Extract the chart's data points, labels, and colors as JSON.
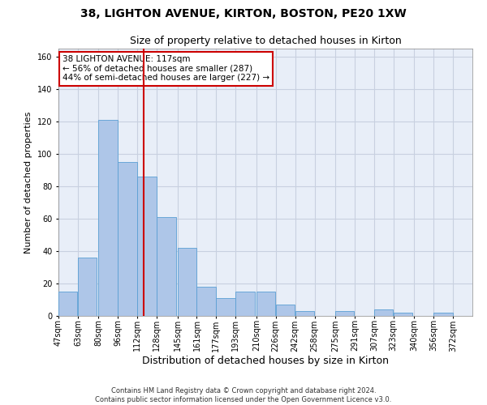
{
  "title1": "38, LIGHTON AVENUE, KIRTON, BOSTON, PE20 1XW",
  "title2": "Size of property relative to detached houses in Kirton",
  "xlabel": "Distribution of detached houses by size in Kirton",
  "ylabel": "Number of detached properties",
  "footer1": "Contains HM Land Registry data © Crown copyright and database right 2024.",
  "footer2": "Contains public sector information licensed under the Open Government Licence v3.0.",
  "annotation_title": "38 LIGHTON AVENUE: 117sqm",
  "annotation_line1": "← 56% of detached houses are smaller (287)",
  "annotation_line2": "44% of semi-detached houses are larger (227) →",
  "bar_color": "#aec6e8",
  "bar_edge_color": "#5a9fd4",
  "vline_color": "#cc0000",
  "vline_x": 117,
  "categories": [
    "47sqm",
    "63sqm",
    "80sqm",
    "96sqm",
    "112sqm",
    "128sqm",
    "145sqm",
    "161sqm",
    "177sqm",
    "193sqm",
    "210sqm",
    "226sqm",
    "242sqm",
    "258sqm",
    "275sqm",
    "291sqm",
    "307sqm",
    "323sqm",
    "340sqm",
    "356sqm",
    "372sqm"
  ],
  "bin_edges": [
    47,
    63,
    80,
    96,
    112,
    128,
    145,
    161,
    177,
    193,
    210,
    226,
    242,
    258,
    275,
    291,
    307,
    323,
    340,
    356,
    372
  ],
  "bin_width": 16,
  "values": [
    15,
    36,
    121,
    95,
    86,
    61,
    42,
    18,
    11,
    15,
    15,
    7,
    3,
    0,
    3,
    0,
    4,
    2,
    0,
    2,
    0
  ],
  "ylim": [
    0,
    165
  ],
  "yticks": [
    0,
    20,
    40,
    60,
    80,
    100,
    120,
    140,
    160
  ],
  "ax_facecolor": "#e8eef8",
  "background_color": "#ffffff",
  "grid_color": "#c8d0e0",
  "annotation_box_color": "#ffffff",
  "annotation_box_edge": "#cc0000",
  "title_fontsize": 10,
  "subtitle_fontsize": 9,
  "ylabel_fontsize": 8,
  "xlabel_fontsize": 9,
  "tick_fontsize": 7,
  "footer_fontsize": 6,
  "annotation_fontsize": 7.5
}
